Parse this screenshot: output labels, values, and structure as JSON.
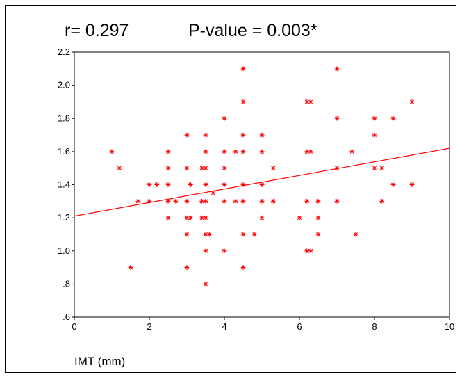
{
  "header": {
    "r_text": "r= 0.297",
    "p_text": "P-value = 0.003*"
  },
  "chart_data": {
    "type": "scatter",
    "title": "",
    "xlabel": "IMT (mm)",
    "ylabel": "",
    "xlim": [
      0,
      10
    ],
    "ylim": [
      0.6,
      2.2
    ],
    "grid": false,
    "marker": "asterisk",
    "color": "#ff0000",
    "x_ticks": [
      0,
      2,
      4,
      6,
      8,
      10
    ],
    "x_tick_labels": [
      "0",
      "2",
      "4",
      "6",
      "8",
      "10"
    ],
    "y_ticks": [
      0.6,
      0.8,
      1.0,
      1.2,
      1.4,
      1.6,
      1.8,
      2.0,
      2.2
    ],
    "y_tick_labels": [
      ".6",
      ".8",
      "1.0",
      "1.2",
      "1.4",
      "1.6",
      "1.8",
      "2.0",
      "2.2"
    ],
    "regression_line": {
      "x": [
        0,
        10
      ],
      "y": [
        1.21,
        1.62
      ]
    },
    "points": [
      [
        1.0,
        1.6
      ],
      [
        1.2,
        1.5
      ],
      [
        1.5,
        0.9
      ],
      [
        1.7,
        1.3
      ],
      [
        2.0,
        1.4
      ],
      [
        2.0,
        1.3
      ],
      [
        2.2,
        1.4
      ],
      [
        2.5,
        1.6
      ],
      [
        2.5,
        1.5
      ],
      [
        2.5,
        1.4
      ],
      [
        2.5,
        1.3
      ],
      [
        2.5,
        1.2
      ],
      [
        2.7,
        1.3
      ],
      [
        3.0,
        1.7
      ],
      [
        3.0,
        1.5
      ],
      [
        3.0,
        1.3
      ],
      [
        3.0,
        1.2
      ],
      [
        3.0,
        1.1
      ],
      [
        3.0,
        0.9
      ],
      [
        3.1,
        1.4
      ],
      [
        3.1,
        1.2
      ],
      [
        3.4,
        1.5
      ],
      [
        3.4,
        1.3
      ],
      [
        3.4,
        1.2
      ],
      [
        3.5,
        1.7
      ],
      [
        3.5,
        1.6
      ],
      [
        3.5,
        1.5
      ],
      [
        3.5,
        1.4
      ],
      [
        3.5,
        1.3
      ],
      [
        3.5,
        1.2
      ],
      [
        3.5,
        1.1
      ],
      [
        3.5,
        1.0
      ],
      [
        3.5,
        0.8
      ],
      [
        3.6,
        1.1
      ],
      [
        3.7,
        1.35
      ],
      [
        4.0,
        1.8
      ],
      [
        4.0,
        1.6
      ],
      [
        4.0,
        1.5
      ],
      [
        4.0,
        1.4
      ],
      [
        4.0,
        1.3
      ],
      [
        4.0,
        1.0
      ],
      [
        4.3,
        1.6
      ],
      [
        4.3,
        1.3
      ],
      [
        4.5,
        2.1
      ],
      [
        4.5,
        1.9
      ],
      [
        4.5,
        1.7
      ],
      [
        4.5,
        1.6
      ],
      [
        4.5,
        1.4
      ],
      [
        4.5,
        1.3
      ],
      [
        4.5,
        1.1
      ],
      [
        4.5,
        0.9
      ],
      [
        4.8,
        1.1
      ],
      [
        5.0,
        1.7
      ],
      [
        5.0,
        1.6
      ],
      [
        5.0,
        1.4
      ],
      [
        5.0,
        1.3
      ],
      [
        5.0,
        1.2
      ],
      [
        5.3,
        1.5
      ],
      [
        5.3,
        1.3
      ],
      [
        6.0,
        1.2
      ],
      [
        6.2,
        1.9
      ],
      [
        6.2,
        1.6
      ],
      [
        6.2,
        1.3
      ],
      [
        6.2,
        1.0
      ],
      [
        6.3,
        1.9
      ],
      [
        6.3,
        1.6
      ],
      [
        6.3,
        1.0
      ],
      [
        6.5,
        1.3
      ],
      [
        6.5,
        1.2
      ],
      [
        6.5,
        1.1
      ],
      [
        7.0,
        2.1
      ],
      [
        7.0,
        1.8
      ],
      [
        7.0,
        1.5
      ],
      [
        7.0,
        1.3
      ],
      [
        7.4,
        1.6
      ],
      [
        7.5,
        1.1
      ],
      [
        8.0,
        1.8
      ],
      [
        8.0,
        1.7
      ],
      [
        8.0,
        1.5
      ],
      [
        8.2,
        1.5
      ],
      [
        8.2,
        1.3
      ],
      [
        8.5,
        1.8
      ],
      [
        8.5,
        1.4
      ],
      [
        9.0,
        1.9
      ],
      [
        9.0,
        1.4
      ]
    ]
  }
}
